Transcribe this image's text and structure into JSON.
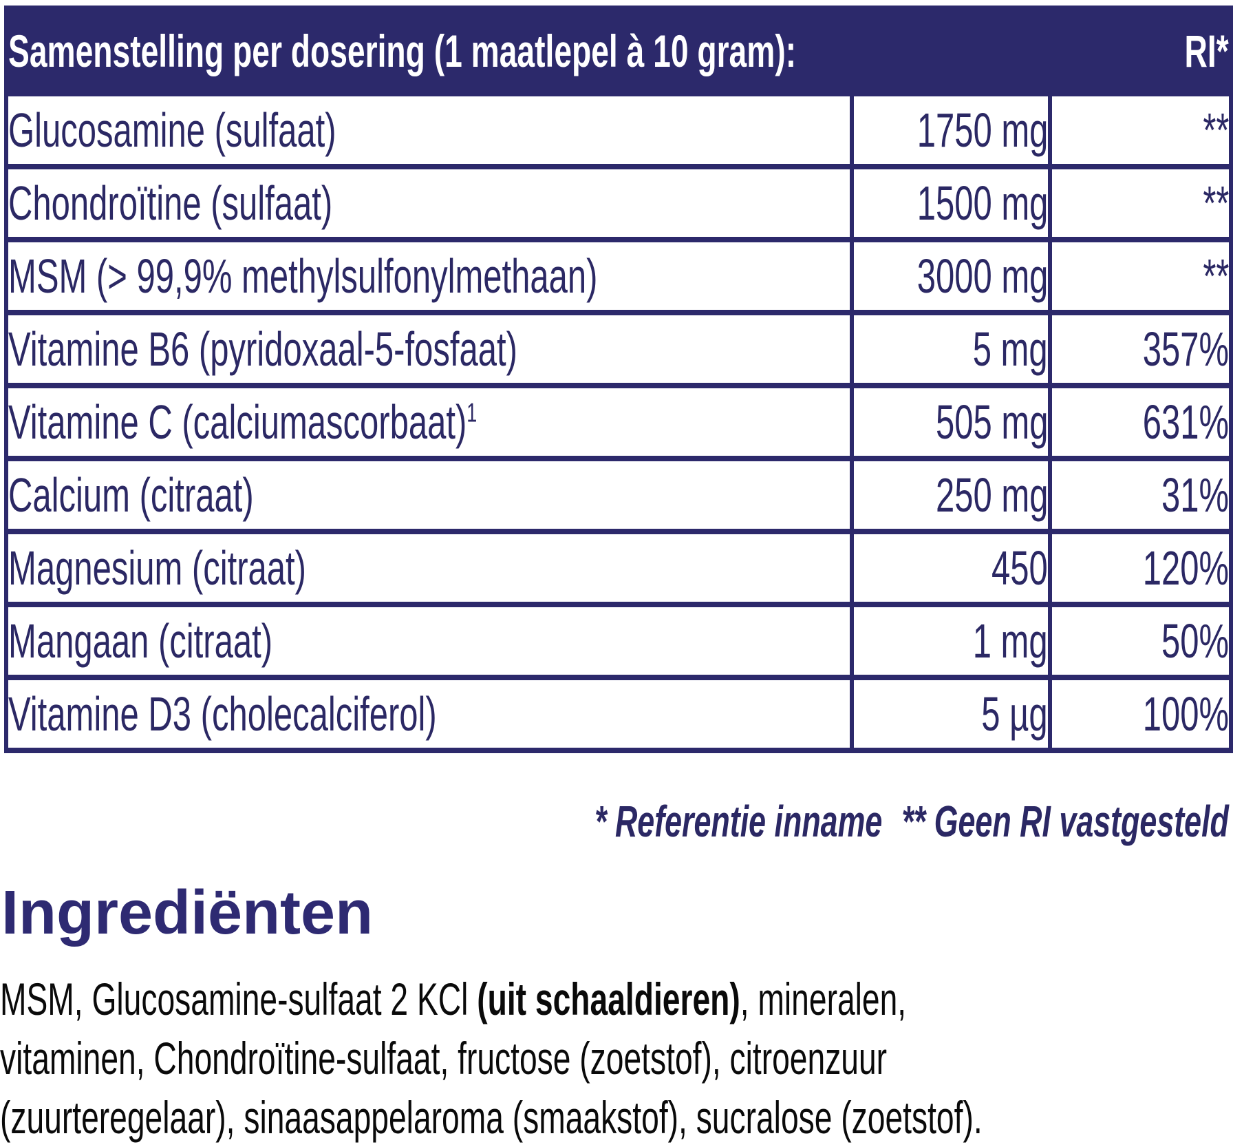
{
  "colors": {
    "navy": "#2C296B",
    "text_navy": "#2B2864",
    "heading_navy": "#2E2A72",
    "body_text": "#0A0A0A"
  },
  "composition_table": {
    "title": "Samenstelling per dosering (1 maatlepel à 10 gram):",
    "ri_header": "RI*",
    "rows": [
      {
        "name": "Glucosamine (sulfaat)",
        "amount": "1750 mg",
        "ri": "**"
      },
      {
        "name": "Chondroïtine (sulfaat)",
        "amount": "1500 mg",
        "ri": "**"
      },
      {
        "name": "MSM (> 99,9% methylsulfonylmethaan)",
        "amount": "3000 mg",
        "ri": "**"
      },
      {
        "name": "Vitamine B6 (pyridoxaal-5-fosfaat)",
        "amount": "5 mg",
        "ri": "357%"
      },
      {
        "name": "Vitamine C (calciumascorbaat)",
        "sup": "1",
        "amount": "505 mg",
        "ri": "631%"
      },
      {
        "name": "Calcium (citraat)",
        "amount": "250 mg",
        "ri": "31%"
      },
      {
        "name": "Magnesium (citraat)",
        "amount": "450",
        "ri": "120%"
      },
      {
        "name": "Mangaan (citraat)",
        "amount": "1 mg",
        "ri": "50%"
      },
      {
        "name": "Vitamine D3 (cholecalciferol)",
        "amount": "5 µg",
        "ri": "100%"
      }
    ]
  },
  "footnotes": {
    "reference_intake": "* Referentie inname",
    "no_ri_established": "** Geen RI vastgesteld"
  },
  "ingredients": {
    "heading": "Ingrediënten",
    "segments": [
      {
        "text": "MSM, Glucosamine-sulfaat 2 KCl ",
        "bold": false
      },
      {
        "text": "(uit schaaldieren)",
        "bold": true
      },
      {
        "text": ", mineralen,\nvitaminen, Chondroïtine-sulfaat, fructose (zoetstof), citroenzuur\n(zuurteregelaar), sinaasappelaroma (smaakstof), sucralose (zoetstof).",
        "bold": false
      }
    ]
  }
}
